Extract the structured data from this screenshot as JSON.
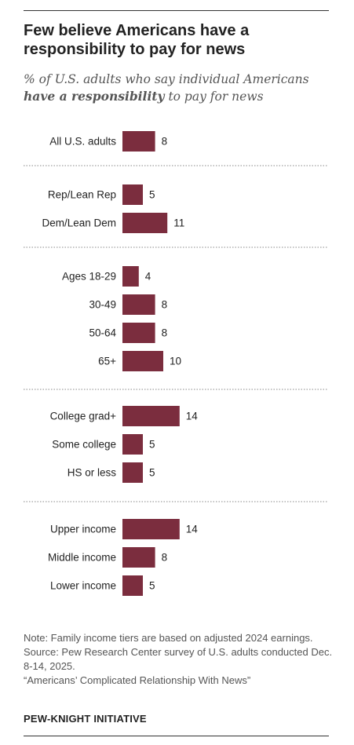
{
  "title": "Few believe Americans have a responsibility to pay for news",
  "subtitle": {
    "pre": "% of U.S. adults who say individual Americans",
    "bold": "have a responsibility",
    "post": "to pay for news"
  },
  "chart_data": {
    "type": "bar",
    "orientation": "horizontal",
    "bar_color": "#7b2d3e",
    "groups": [
      {
        "categories": [
          "All U.S. adults"
        ],
        "values": [
          8
        ]
      },
      {
        "categories": [
          "Rep/Lean Rep",
          "Dem/Lean Dem"
        ],
        "values": [
          5,
          11
        ]
      },
      {
        "categories": [
          "Ages 18-29",
          "30-49",
          "50-64",
          "65+"
        ],
        "values": [
          4,
          8,
          8,
          10
        ]
      },
      {
        "categories": [
          "College grad+",
          "Some college",
          "HS or less"
        ],
        "values": [
          14,
          5,
          5
        ]
      },
      {
        "categories": [
          "Upper income",
          "Middle income",
          "Lower income"
        ],
        "values": [
          14,
          8,
          5
        ]
      }
    ],
    "xlim": [
      0,
      14
    ]
  },
  "notes": {
    "note": "Note: Family income tiers are based on adjusted 2024 earnings.",
    "source": "Source: Pew Research Center survey of U.S. adults conducted Dec. 8-14, 2025.",
    "report": "“Americans’ Complicated Relationship With News”"
  },
  "footer": "PEW-KNIGHT INITIATIVE"
}
